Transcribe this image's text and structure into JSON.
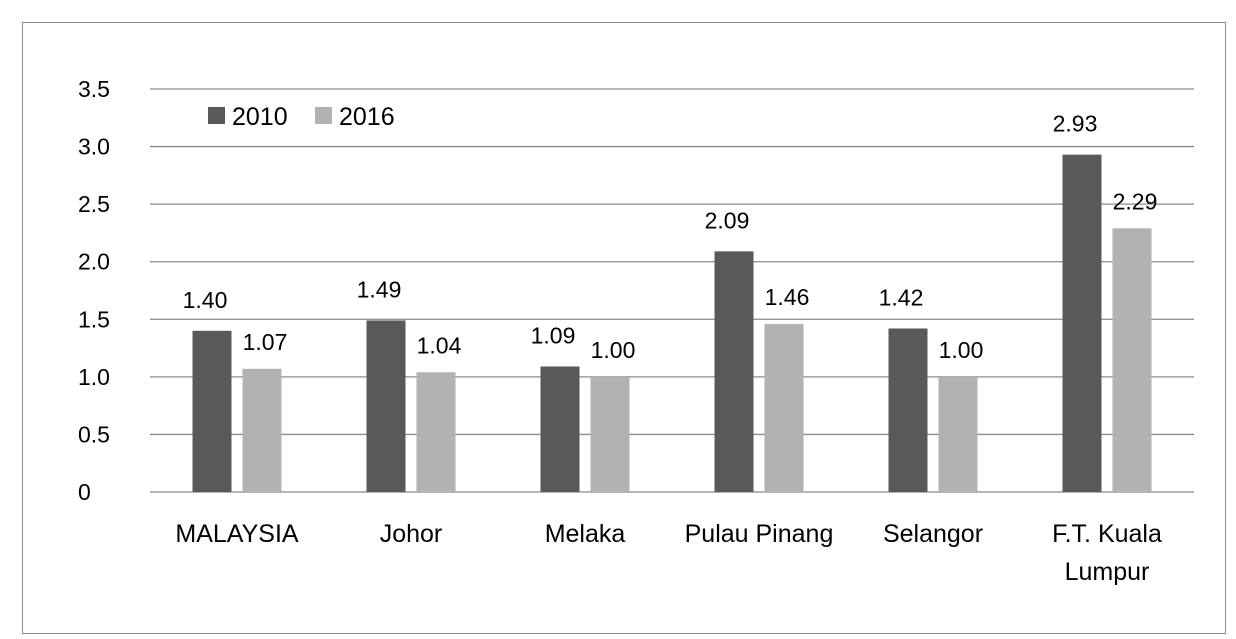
{
  "chart_data": {
    "type": "bar",
    "title": "",
    "xlabel": "",
    "ylabel": "",
    "ylim": [
      0,
      3.5
    ],
    "yticks": [
      "0",
      "0.5",
      "1.0",
      "1.5",
      "2.0",
      "2.5",
      "3.0",
      "3.5"
    ],
    "grid": true,
    "legend_position": "top-left",
    "categories": [
      [
        "MALAYSIA"
      ],
      [
        "Johor"
      ],
      [
        "Melaka"
      ],
      [
        "Pulau Pinang"
      ],
      [
        "Selangor"
      ],
      [
        "F.T. Kuala",
        "Lumpur"
      ]
    ],
    "series": [
      {
        "name": "2010",
        "color": "#58595b",
        "values": [
          1.4,
          1.49,
          1.09,
          2.09,
          1.42,
          2.93
        ],
        "labels": [
          "1.40",
          "1.49",
          "1.09",
          "2.09",
          "1.42",
          "2.93"
        ]
      },
      {
        "name": "2016",
        "color": "#b2b2b2",
        "values": [
          1.07,
          1.04,
          1.0,
          1.46,
          1.0,
          2.29
        ],
        "labels": [
          "1.07",
          "1.04",
          "1.00",
          "1.46",
          "1.00",
          "2.29"
        ]
      }
    ]
  }
}
